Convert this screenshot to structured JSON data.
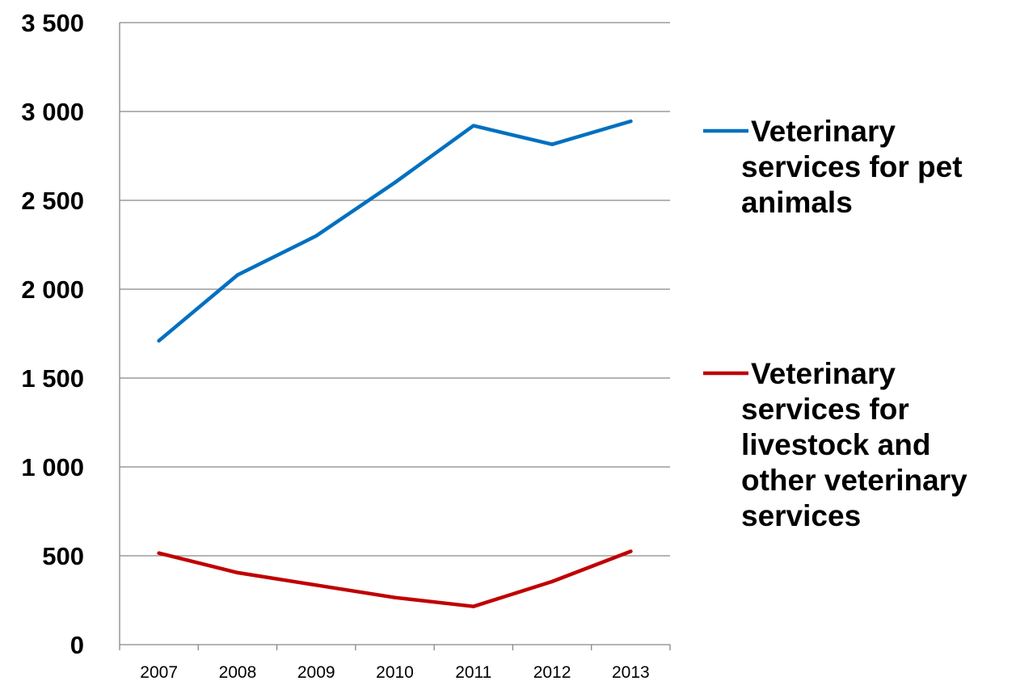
{
  "chart_data": {
    "type": "line",
    "title": "",
    "xlabel": "",
    "ylabel": "",
    "x": [
      "2007",
      "2008",
      "2009",
      "2010",
      "2011",
      "2012",
      "2013"
    ],
    "ylim": [
      0,
      3500
    ],
    "yticks": [
      0,
      500,
      1000,
      1500,
      2000,
      2500,
      3000,
      3500
    ],
    "ytick_labels": [
      "0",
      "500",
      "1 000",
      "1 500",
      "2 000",
      "2 500",
      "3 000",
      "3 500"
    ],
    "grid": true,
    "legend_position": "right",
    "series": [
      {
        "name": "Veterinary services for pet animals",
        "legend_lines": [
          "Veterinary",
          "services for pet",
          "animals"
        ],
        "color": "#0070C0",
        "values": [
          1710,
          2080,
          2300,
          2600,
          2920,
          2815,
          2945
        ]
      },
      {
        "name": "Veterinary services for livestock and other veterinary services",
        "legend_lines": [
          "Veterinary",
          "services for",
          "livestock and",
          "other veterinary",
          "services"
        ],
        "color": "#C00000",
        "values": [
          515,
          405,
          335,
          265,
          215,
          355,
          525
        ]
      }
    ]
  }
}
